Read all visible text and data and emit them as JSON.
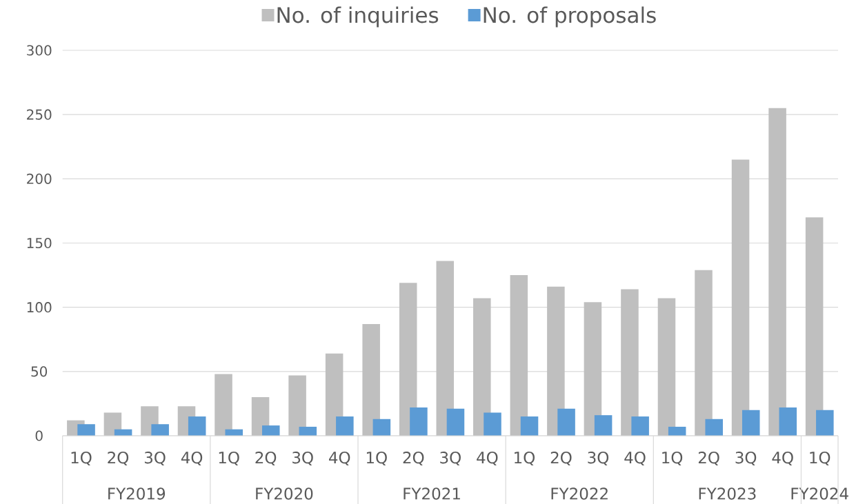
{
  "chart_data": {
    "type": "bar",
    "categories": [
      "1Q",
      "2Q",
      "3Q",
      "4Q",
      "1Q",
      "2Q",
      "3Q",
      "4Q",
      "1Q",
      "2Q",
      "3Q",
      "4Q",
      "1Q",
      "2Q",
      "3Q",
      "4Q",
      "1Q",
      "2Q",
      "3Q",
      "4Q",
      "1Q"
    ],
    "series": [
      {
        "name": "No. of inquiries",
        "color": "#bfbfbf",
        "values": [
          12,
          18,
          23,
          23,
          48,
          30,
          47,
          64,
          87,
          119,
          136,
          107,
          125,
          116,
          104,
          114,
          107,
          129,
          215,
          255,
          170
        ]
      },
      {
        "name": "No. of proposals",
        "color": "#5b9bd5",
        "values": [
          9,
          5,
          9,
          15,
          5,
          8,
          7,
          15,
          13,
          22,
          21,
          18,
          15,
          21,
          16,
          15,
          7,
          13,
          20,
          22,
          20
        ]
      }
    ],
    "ylim": [
      0,
      300
    ],
    "yticks": [
      0,
      50,
      100,
      150,
      200,
      250,
      300
    ],
    "grid": "y",
    "legend": "top",
    "annotations": [
      "FY2019",
      "FY2020",
      "FY2021",
      "FY2022",
      "FY2023",
      "FY2024"
    ]
  }
}
